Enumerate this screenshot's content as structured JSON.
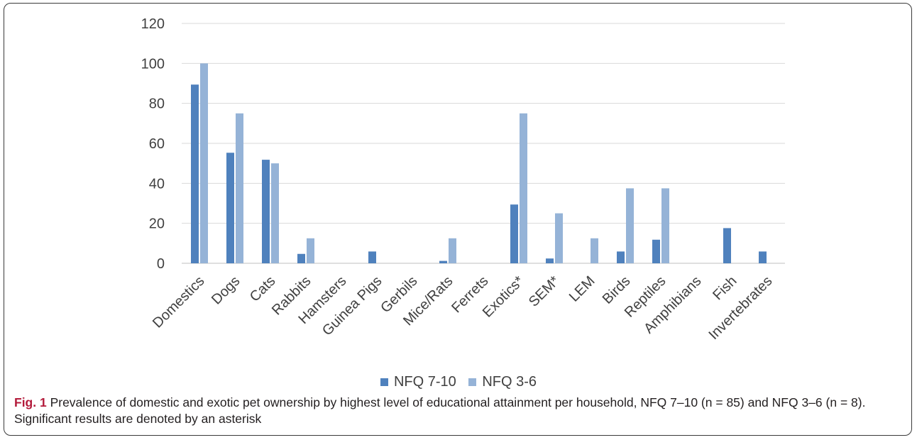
{
  "chart_data": {
    "type": "bar",
    "categories": [
      "Domestics",
      "Dogs",
      "Cats",
      "Rabbits",
      "Hamsters",
      "Guinea Pigs",
      "Gerbils",
      "Mice/Rats",
      "Ferrets",
      "Exotics*",
      "SEM*",
      "LEM",
      "Birds",
      "Reptiles",
      "Amphibians",
      "Fish",
      "Invertebrates"
    ],
    "series": [
      {
        "name": "NFQ 7-10",
        "color": "#4f81bd",
        "values": [
          89.4,
          55.3,
          51.8,
          4.7,
          0,
          5.9,
          0,
          1.2,
          0,
          29.4,
          2.4,
          0,
          5.9,
          11.8,
          0,
          17.6,
          5.9
        ]
      },
      {
        "name": "NFQ 3-6",
        "color": "#95b3d7",
        "values": [
          100,
          75,
          50,
          12.5,
          0,
          0,
          0,
          12.5,
          0,
          75,
          25,
          12.5,
          37.5,
          37.5,
          0,
          0,
          0
        ]
      }
    ],
    "ylim": [
      0,
      120
    ],
    "yticks": [
      "0",
      "20",
      "40",
      "60",
      "80",
      "100",
      "120"
    ],
    "grid": true,
    "legend": "bottom"
  },
  "caption": {
    "label": "Fig. 1",
    "text": "Prevalence of domestic and exotic pet ownership by highest level of educational attainment per household, NFQ 7–10 (n = 85) and NFQ 3–6 (n = 8). Significant results are denoted by an asterisk"
  }
}
